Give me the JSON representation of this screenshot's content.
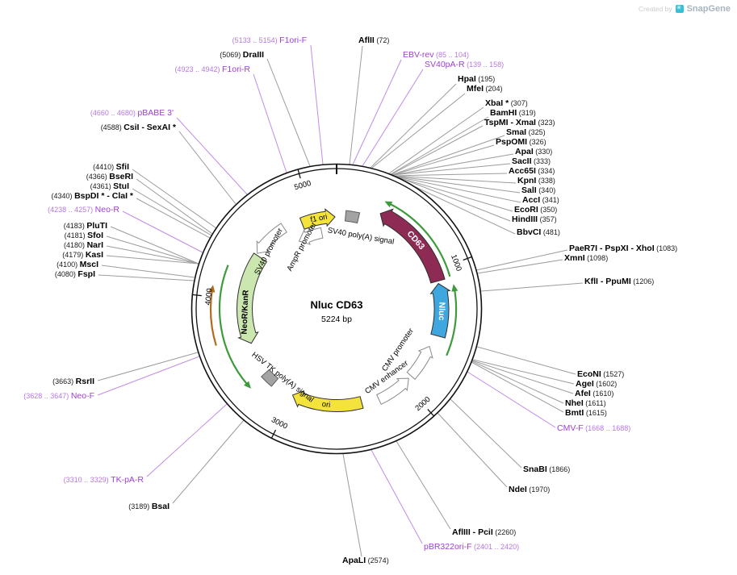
{
  "watermark": {
    "created_by": "Created by",
    "brand": "SnapGene"
  },
  "plasmid": {
    "name": "Nluc CD63",
    "size": "5224 bp"
  },
  "ticks": [
    "1000",
    "2000",
    "3000",
    "4000",
    "5000"
  ],
  "features": [
    {
      "label": "f1 ori",
      "fill": "#F5E33D",
      "text_color": "#000000"
    },
    {
      "label": "SV40 poly(A) signal",
      "fill": "#A3A3A3",
      "text_color": "#000000"
    },
    {
      "label": "CD63",
      "fill": "#8E2B54",
      "text_color": "#FFFFFF"
    },
    {
      "label": "Nluc",
      "fill": "#3FA7DE",
      "text_color": "#FFFFFF"
    },
    {
      "label": "NeoR/KanR",
      "fill": "#CBE7AF",
      "text_color": "#000000"
    },
    {
      "label": "SV40 promoter",
      "fill": "#FFFFFF",
      "text_color": "#000000"
    },
    {
      "label": "AmpR promoter",
      "fill": "#FFFFFF",
      "text_color": "#000000"
    },
    {
      "label": "HSV TK poly(A) signal",
      "fill": "#A3A3A3",
      "text_color": "#000000"
    },
    {
      "label": "CMV promoter",
      "fill": "#FFFFFF",
      "text_color": "#000000"
    },
    {
      "label": "CMV enhancer",
      "fill": "#FFFFFF",
      "text_color": "#000000"
    },
    {
      "label": "ori",
      "fill": "#F5E33D",
      "text_color": "#000000"
    }
  ],
  "sites": [
    {
      "pre": "(5133 .. 5154) ",
      "name": "F1ori-F",
      "post": "",
      "kind": "primer"
    },
    {
      "pre": "",
      "name": "AflII",
      "post": " (72)",
      "kind": "enzyme"
    },
    {
      "pre": "(5069) ",
      "name": "DraIII",
      "post": "",
      "kind": "enzyme"
    },
    {
      "pre": "",
      "name": "EBV-rev",
      "post": " (85 .. 104)",
      "kind": "primer"
    },
    {
      "pre": "",
      "name": "SV40pA-R",
      "post": " (139 .. 158)",
      "kind": "primer"
    },
    {
      "pre": "(4923 .. 4942) ",
      "name": "F1ori-R",
      "post": "",
      "kind": "primer"
    },
    {
      "pre": "",
      "name": "HpaI",
      "post": " (195)",
      "kind": "enzyme"
    },
    {
      "pre": "",
      "name": "MfeI",
      "post": " (204)",
      "kind": "enzyme"
    },
    {
      "pre": "",
      "name": "XbaI *",
      "post": " (307)",
      "kind": "enzyme"
    },
    {
      "pre": "",
      "name": "BamHI",
      "post": " (319)",
      "kind": "enzyme"
    },
    {
      "pre": "",
      "name": "TspMI - XmaI",
      "post": " (323)",
      "kind": "enzyme"
    },
    {
      "pre": "",
      "name": "SmaI",
      "post": " (325)",
      "kind": "enzyme"
    },
    {
      "pre": "",
      "name": "PspOMI",
      "post": " (326)",
      "kind": "enzyme"
    },
    {
      "pre": "",
      "name": "ApaI",
      "post": " (330)",
      "kind": "enzyme"
    },
    {
      "pre": "",
      "name": "SacII",
      "post": " (333)",
      "kind": "enzyme"
    },
    {
      "pre": "",
      "name": "Acc65I",
      "post": " (334)",
      "kind": "enzyme"
    },
    {
      "pre": "",
      "name": "KpnI",
      "post": " (338)",
      "kind": "enzyme"
    },
    {
      "pre": "",
      "name": "SalI",
      "post": " (340)",
      "kind": "enzyme"
    },
    {
      "pre": "",
      "name": "AccI",
      "post": " (341)",
      "kind": "enzyme"
    },
    {
      "pre": "",
      "name": "EcoRI",
      "post": " (350)",
      "kind": "enzyme"
    },
    {
      "pre": "",
      "name": "HindIII",
      "post": " (357)",
      "kind": "enzyme"
    },
    {
      "pre": "",
      "name": "BbvCI",
      "post": " (481)",
      "kind": "enzyme"
    },
    {
      "pre": "",
      "name": "PaeR7I - PspXI - XhoI",
      "post": " (1083)",
      "kind": "enzyme"
    },
    {
      "pre": "",
      "name": "XmnI",
      "post": " (1098)",
      "kind": "enzyme"
    },
    {
      "pre": "",
      "name": "KflI - PpuMI",
      "post": " (1206)",
      "kind": "enzyme"
    },
    {
      "pre": "",
      "name": "EcoNI",
      "post": " (1527)",
      "kind": "enzyme"
    },
    {
      "pre": "",
      "name": "AgeI",
      "post": " (1602)",
      "kind": "enzyme"
    },
    {
      "pre": "",
      "name": "AfeI",
      "post": " (1610)",
      "kind": "enzyme"
    },
    {
      "pre": "",
      "name": "NheI",
      "post": " (1611)",
      "kind": "enzyme"
    },
    {
      "pre": "",
      "name": "BmtI",
      "post": " (1615)",
      "kind": "enzyme"
    },
    {
      "pre": "",
      "name": "CMV-F",
      "post": " (1668 .. 1688)",
      "kind": "primer"
    },
    {
      "pre": "",
      "name": "SnaBI",
      "post": " (1866)",
      "kind": "enzyme"
    },
    {
      "pre": "",
      "name": "NdeI",
      "post": " (1970)",
      "kind": "enzyme"
    },
    {
      "pre": "",
      "name": "AflIII - PciI",
      "post": " (2260)",
      "kind": "enzyme"
    },
    {
      "pre": "",
      "name": "pBR322ori-F",
      "post": " (2401 .. 2420)",
      "kind": "primer"
    },
    {
      "pre": "",
      "name": "ApaLI",
      "post": " (2574)",
      "kind": "enzyme"
    },
    {
      "pre": "(3189) ",
      "name": "BsaI",
      "post": "",
      "kind": "enzyme"
    },
    {
      "pre": "(3310 .. 3329) ",
      "name": "TK-pA-R",
      "post": "",
      "kind": "primer"
    },
    {
      "pre": "(3628 .. 3647) ",
      "name": "Neo-F",
      "post": "",
      "kind": "primer"
    },
    {
      "pre": "(3663) ",
      "name": "RsrII",
      "post": "",
      "kind": "enzyme"
    },
    {
      "pre": "(4080) ",
      "name": "FspI",
      "post": "",
      "kind": "enzyme"
    },
    {
      "pre": "(4100) ",
      "name": "MscI",
      "post": "",
      "kind": "enzyme"
    },
    {
      "pre": "(4179) ",
      "name": "KasI",
      "post": "",
      "kind": "enzyme"
    },
    {
      "pre": "(4180) ",
      "name": "NarI",
      "post": "",
      "kind": "enzyme"
    },
    {
      "pre": "(4181) ",
      "name": "SfoI",
      "post": "",
      "kind": "enzyme"
    },
    {
      "pre": "(4183) ",
      "name": "PluTI",
      "post": "",
      "kind": "enzyme"
    },
    {
      "pre": "(4238 .. 4257) ",
      "name": "Neo-R",
      "post": "",
      "kind": "primer"
    },
    {
      "pre": "(4340) ",
      "name": "BspDI * - ClaI *",
      "post": "",
      "kind": "enzyme"
    },
    {
      "pre": "(4361) ",
      "name": "StuI",
      "post": "",
      "kind": "enzyme"
    },
    {
      "pre": "(4366) ",
      "name": "BseRI",
      "post": "",
      "kind": "enzyme"
    },
    {
      "pre": "(4410) ",
      "name": "SfiI",
      "post": "",
      "kind": "enzyme"
    },
    {
      "pre": "(4588) ",
      "name": "CsiI - SexAI *",
      "post": "",
      "kind": "enzyme"
    },
    {
      "pre": "(4660 .. 4680) ",
      "name": "pBABE 3'",
      "post": "",
      "kind": "primer"
    }
  ],
  "colors": {
    "ring": "#111111",
    "enzyme_line": "#9C9C9C",
    "primer_line": "#C18BE8",
    "primer_text": "#9C3FD6",
    "primer_pos": "#B678E0",
    "orf_green": "#3E9B3C",
    "orf_orange": "#B06C21",
    "watermark_created": "#CCCCCC",
    "watermark_brand": "#A9B4BE",
    "logo": "#35BFD8"
  }
}
